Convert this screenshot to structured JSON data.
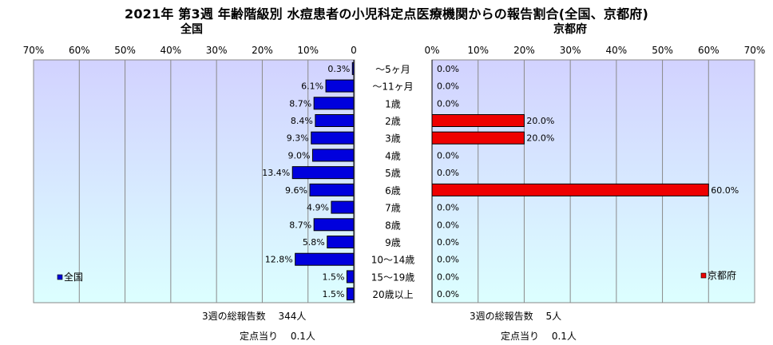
{
  "title": "2021年 第3週 年齢階級別 水痘患者の小児科定点医療機関からの報告割合(全国、京都府)",
  "colors": {
    "national": "#0000dd",
    "kyoto": "#ee0000"
  },
  "chart_data": [
    {
      "type": "bar",
      "orientation": "horizontal",
      "direction": "right-to-left",
      "title": "全国",
      "legend": "全国",
      "legend_position": "bottom-left",
      "xlim": [
        0,
        70
      ],
      "ticks": [
        "70%",
        "60%",
        "50%",
        "40%",
        "30%",
        "20%",
        "10%",
        "0"
      ],
      "categories": [
        "～5ヶ月",
        "～11ヶ月",
        "1歳",
        "2歳",
        "3歳",
        "4歳",
        "5歳",
        "6歳",
        "7歳",
        "8歳",
        "9歳",
        "10～14歳",
        "15～19歳",
        "20歳以上"
      ],
      "values": [
        0.3,
        6.1,
        8.7,
        8.4,
        9.3,
        9.0,
        13.4,
        9.6,
        4.9,
        8.7,
        5.8,
        12.8,
        1.5,
        1.5
      ],
      "value_labels": [
        "0.3%",
        "6.1%",
        "8.7%",
        "8.4%",
        "9.3%",
        "9.0%",
        "13.4%",
        "9.6%",
        "4.9%",
        "8.7%",
        "5.8%",
        "12.8%",
        "1.5%",
        "1.5%"
      ]
    },
    {
      "type": "bar",
      "orientation": "horizontal",
      "direction": "left-to-right",
      "title": "京都府",
      "legend": "京都府",
      "legend_position": "bottom-right",
      "xlim": [
        0,
        70
      ],
      "ticks": [
        "0%",
        "10%",
        "20%",
        "30%",
        "40%",
        "50%",
        "60%",
        "70%"
      ],
      "categories": [
        "～5ヶ月",
        "～11ヶ月",
        "1歳",
        "2歳",
        "3歳",
        "4歳",
        "5歳",
        "6歳",
        "7歳",
        "8歳",
        "9歳",
        "10～14歳",
        "15～19歳",
        "20歳以上"
      ],
      "values": [
        0.0,
        0.0,
        0.0,
        20.0,
        20.0,
        0.0,
        0.0,
        60.0,
        0.0,
        0.0,
        0.0,
        0.0,
        0.0,
        0.0
      ],
      "value_labels": [
        "0.0%",
        "0.0%",
        "0.0%",
        "20.0%",
        "20.0%",
        "0.0%",
        "0.0%",
        "60.0%",
        "0.0%",
        "0.0%",
        "0.0%",
        "0.0%",
        "0.0%",
        "0.0%"
      ]
    }
  ],
  "footer": {
    "national_total": "3週の総報告数　 344人",
    "national_per": "定点当り　 0.1人",
    "kyoto_total": "3週の総報告数　 5人",
    "kyoto_per": "定点当り　 0.1人"
  }
}
